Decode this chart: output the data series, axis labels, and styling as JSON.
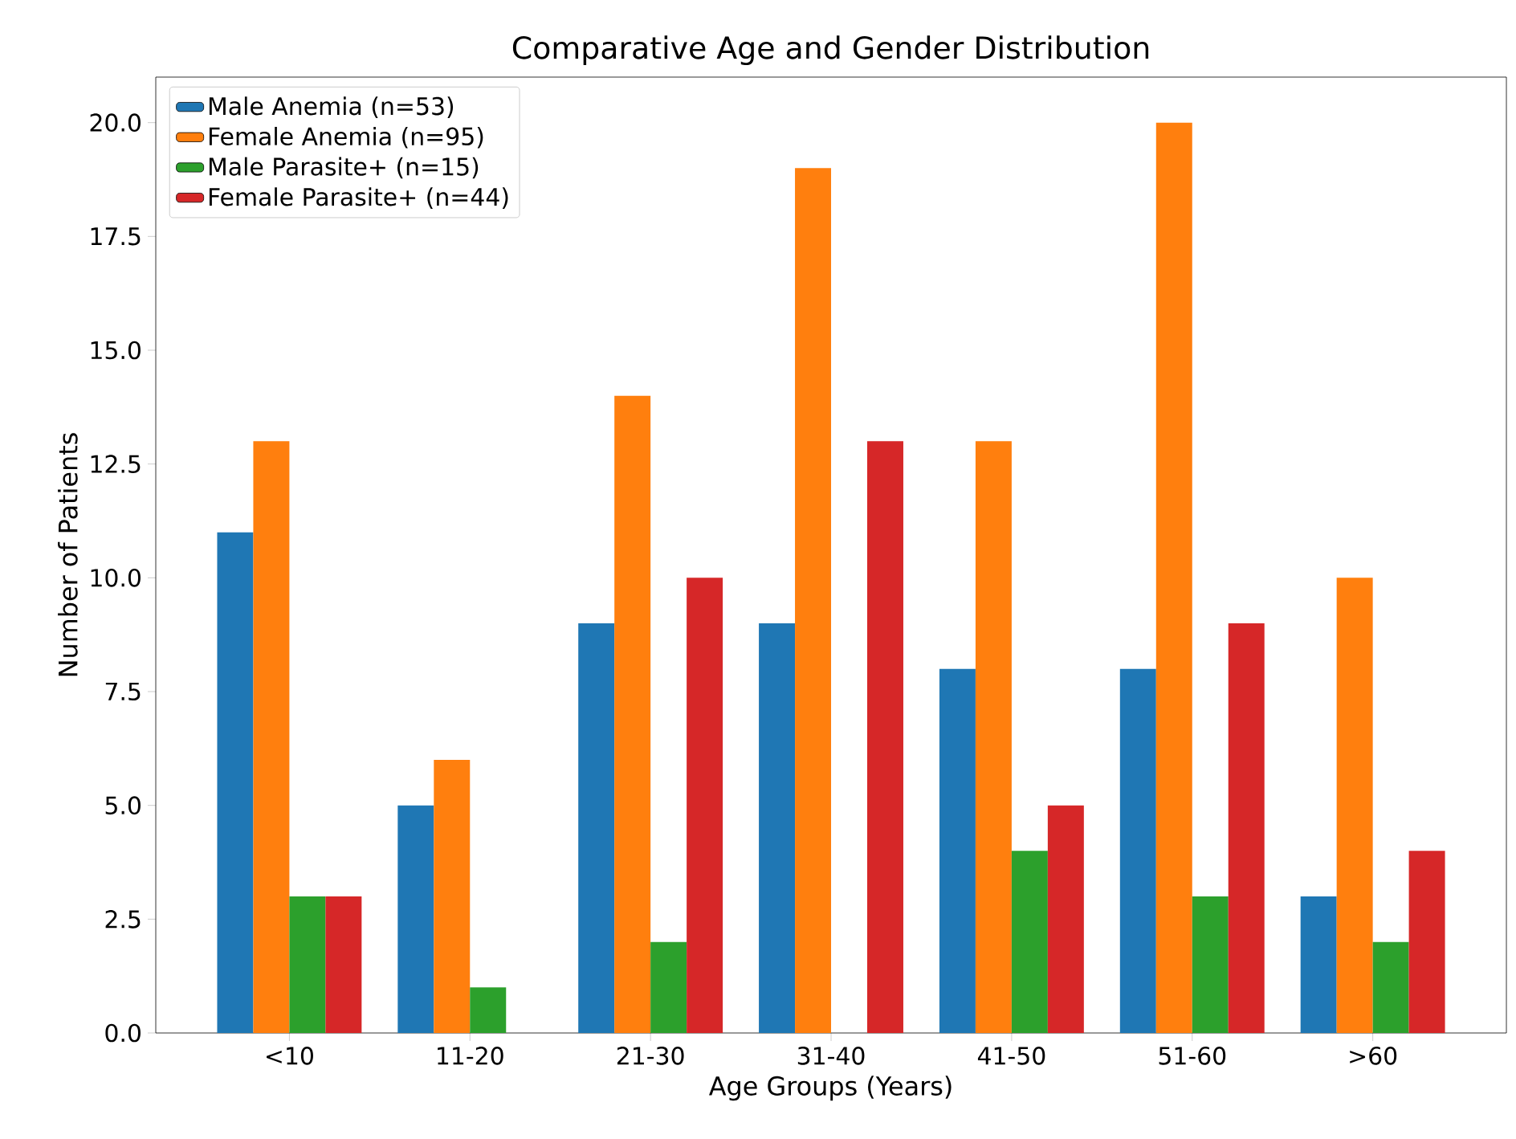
{
  "chart_data": {
    "type": "bar",
    "title": "Comparative Age and Gender Distribution",
    "xlabel": "Age Groups (Years)",
    "ylabel": "Number of Patients",
    "categories": [
      "<10",
      "11-20",
      "21-30",
      "31-40",
      "41-50",
      "51-60",
      ">60"
    ],
    "series": [
      {
        "name": "Male Anemia (n=53)",
        "color": "#1f77b4",
        "values": [
          11,
          5,
          9,
          9,
          8,
          8,
          3
        ]
      },
      {
        "name": "Female Anemia (n=95)",
        "color": "#ff7f0e",
        "values": [
          13,
          6,
          14,
          19,
          13,
          20,
          10
        ]
      },
      {
        "name": "Male Parasite+ (n=15)",
        "color": "#2ca02c",
        "values": [
          3,
          1,
          2,
          0,
          4,
          3,
          2
        ]
      },
      {
        "name": "Female Parasite+ (n=44)",
        "color": "#d62728",
        "values": [
          3,
          0,
          10,
          13,
          5,
          9,
          4
        ]
      }
    ],
    "ylim": [
      0,
      21
    ],
    "yticks": [
      {
        "value": 0,
        "label": "0.0"
      },
      {
        "value": 2.5,
        "label": "2.5"
      },
      {
        "value": 5,
        "label": "5.0"
      },
      {
        "value": 7.5,
        "label": "7.5"
      },
      {
        "value": 10,
        "label": "10.0"
      },
      {
        "value": 12.5,
        "label": "12.5"
      },
      {
        "value": 15,
        "label": "15.0"
      },
      {
        "value": 17.5,
        "label": "17.5"
      },
      {
        "value": 20,
        "label": "20.0"
      }
    ],
    "grid": false,
    "legend": "top left"
  }
}
